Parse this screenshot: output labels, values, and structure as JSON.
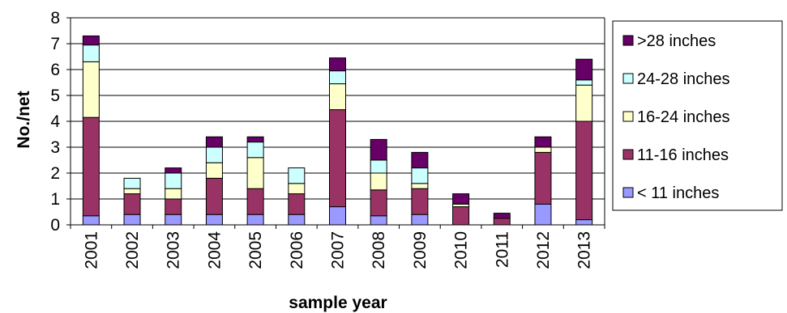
{
  "chart_data": {
    "type": "bar",
    "stacked": true,
    "title": "",
    "xlabel": "sample year",
    "ylabel": "No./net",
    "ylim": [
      0,
      8
    ],
    "yticks": [
      "0",
      "1",
      "2",
      "3",
      "4",
      "5",
      "6",
      "7",
      "8"
    ],
    "grid": true,
    "legend_position": "right",
    "categories": [
      "2001",
      "2002",
      "2003",
      "2004",
      "2005",
      "2006",
      "2007",
      "2008",
      "2009",
      "2010",
      "2011",
      "2012",
      "2013"
    ],
    "series": [
      {
        "name": "< 11 inches",
        "color": "#9999ff",
        "values": [
          0.35,
          0.4,
          0.4,
          0.4,
          0.4,
          0.4,
          0.7,
          0.35,
          0.4,
          0.0,
          0.0,
          0.8,
          0.2
        ]
      },
      {
        "name": "11-16 inches",
        "color": "#993366",
        "values": [
          3.8,
          0.8,
          0.6,
          1.4,
          1.0,
          0.8,
          3.75,
          1.0,
          1.0,
          0.7,
          0.25,
          2.0,
          3.8
        ]
      },
      {
        "name": "16-24 inches",
        "color": "#ffffcc",
        "values": [
          2.15,
          0.2,
          0.4,
          0.6,
          1.2,
          0.4,
          1.0,
          0.65,
          0.2,
          0.1,
          0.0,
          0.2,
          1.4
        ]
      },
      {
        "name": "24-28 inches",
        "color": "#ccffff",
        "values": [
          0.65,
          0.4,
          0.6,
          0.6,
          0.6,
          0.6,
          0.5,
          0.5,
          0.6,
          0.0,
          0.0,
          0.0,
          0.2
        ]
      },
      {
        "name": ">28 inches",
        "color": "#660066",
        "values": [
          0.35,
          0.0,
          0.2,
          0.4,
          0.2,
          0.0,
          0.5,
          0.8,
          0.6,
          0.4,
          0.2,
          0.4,
          0.8
        ]
      }
    ]
  }
}
